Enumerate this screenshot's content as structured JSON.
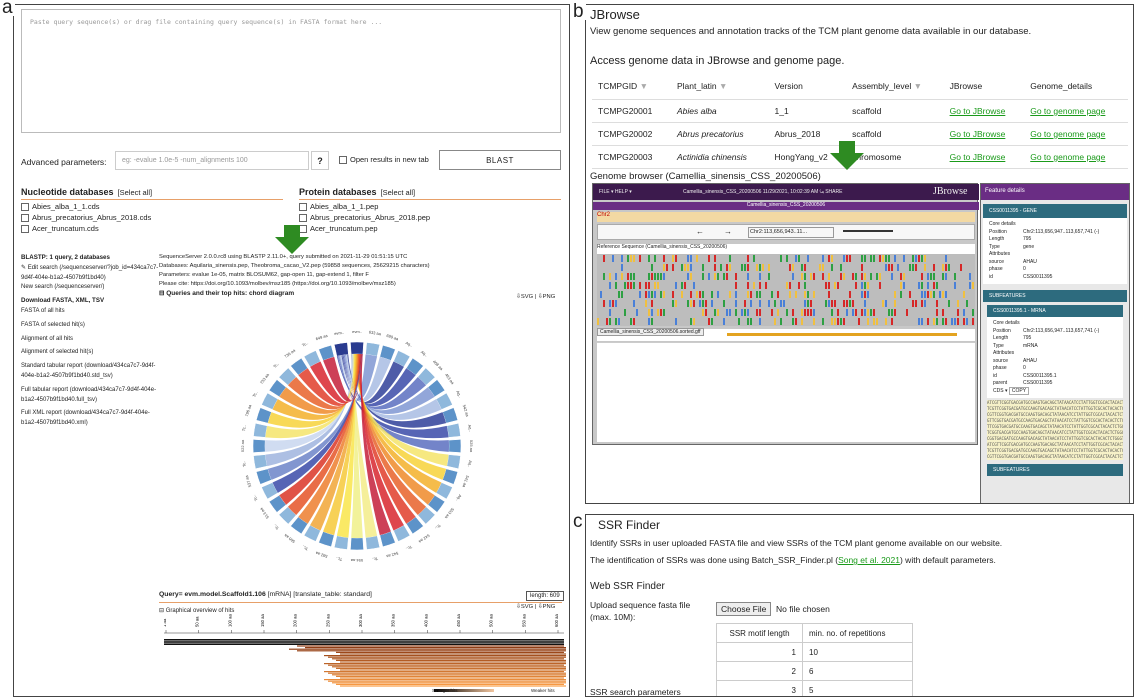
{
  "labels": {
    "a": "a",
    "b": "b",
    "c": "c"
  },
  "panel_a": {
    "query_placeholder": "Paste query sequence(s) or drag file containing query sequence(s) in FASTA format here ...",
    "advanced_label": "Advanced parameters:",
    "advanced_placeholder": "eg: -evalue 1.0e-5 -num_alignments 100",
    "help_btn": "?",
    "open_new_tab": "Open results in new tab",
    "blast_btn": "BLAST",
    "nucleotide_title": "Nucleotide databases",
    "protein_title": "Protein databases",
    "select_all": "[Select all]",
    "nucleotide_dbs": [
      "Abies_alba_1_1.cds",
      "Abrus_precatorius_Abrus_2018.cds",
      "Acer_truncatum.cds"
    ],
    "protein_dbs": [
      "Abies_alba_1_1.pep",
      "Abrus_precatorius_Abrus_2018.pep",
      "Acer_truncatum.pep"
    ],
    "side": {
      "header": "BLASTP: 1 query, 2 databases",
      "edit": "✎ Edit search (/sequenceserver/?job_id=434ca7c7-9d4f-404e-b1a2-4507b9f1bd40)",
      "new_search": "New search (/sequenceserver/)",
      "download_header": "Download FASTA, XML, TSV",
      "links": [
        "FASTA of all hits",
        "FASTA of selected hit(s)",
        "Alignment of all hits",
        "Alignment of selected hit(s)",
        "Standard tabular report (download/434ca7c7-9d4f-404e-b1a2-4507b9f1bd40.std_tsv)",
        "Full tabular report (download/434ca7c7-9d4f-404e-b1a2-4507b9f1bd40.full_tsv)",
        "Full XML report (download/434ca7c7-9d4f-404e-b1a2-4507b9f1bd40.xml)"
      ]
    },
    "meta": {
      "line1": "SequenceServer 2.0.0.rc8 using BLASTP 2.11.0+, query submitted on 2021-11-29 01:51:15 UTC",
      "line2": "Databases: Aquilaria_sinensis.pep, Theobroma_cacao_V2.pep (59858 sequences, 25629215 characters)",
      "line3": "Parameters: evalue 1e-05, matrix BLOSUM62, gap-open 11, gap-extend 1, filter F",
      "line4": "Please cite: https://doi.org/10.1093/molbev/msz185 (https://doi.org/10.1093/molbev/msz185)",
      "chord_title": "⊟ Queries and their top hits: chord diagram"
    },
    "svg_png": "⇩SVG | ⇩PNG",
    "chord_labels": [
      "evm..",
      "evm..",
      "633 aa",
      "699 aa",
      "Aq..",
      "Aq..",
      "468 aa",
      "493 aa",
      "Aq..",
      "542 aa",
      "Aq..",
      "525 aa",
      "Aq..",
      "541 aa",
      "Aq..",
      "553 aa",
      "Tc..",
      "542 aa",
      "Tc..",
      "542 aa",
      "Tc..",
      "594 aa",
      "Tc..",
      "582 aa",
      "Tc..",
      "560 aa",
      "Tc..",
      "513 aa",
      "Tc..",
      "537 aa",
      "Tc..",
      "522 aa",
      "Tc..",
      "796 aa",
      "Tc..",
      "733 aa",
      "Tc..",
      "736 aa",
      "Tc..",
      "649 aa"
    ],
    "query_title": "Query= evm.model.Scaffold1.106",
    "query_meta": "[mRNA] [translate_table: standard]",
    "length": "length: 609",
    "graph_title": "⊟ Graphical overview of hits",
    "ruler_ticks": [
      "1 aa",
      "50 aa",
      "100 aa",
      "150 aa",
      "200 aa",
      "250 aa",
      "300 aa",
      "350 aa",
      "400 aa",
      "450 aa",
      "500 aa",
      "550 aa",
      "600 aa"
    ],
    "stronger": "Stronger hits",
    "weaker": "Weaker hits"
  },
  "panel_b": {
    "title": "JBrowse",
    "desc": "View genome sequences and annotation tracks of the TCM plant genome data available in our database.",
    "access": "Access genome data in JBrowse and genome page.",
    "columns": [
      "TCMPGID",
      "Plant_latin",
      "Version",
      "Assembly_level",
      "JBrowse",
      "Genome_details"
    ],
    "rows": [
      {
        "id": "TCMPG20001",
        "latin": "Abies alba",
        "version": "1_1",
        "level": "scaffold",
        "jb": "Go to JBrowse",
        "gd": "Go to genome page"
      },
      {
        "id": "TCMPG20002",
        "latin": "Abrus precatorius",
        "version": "Abrus_2018",
        "level": "scaffold",
        "jb": "Go to JBrowse",
        "gd": "Go to genome page"
      },
      {
        "id": "TCMPG20003",
        "latin": "Actinidia chinensis",
        "version": "HongYang_v2",
        "level": "chromosome",
        "jb": "Go to JBrowse",
        "gd": "Go to genome page"
      }
    ],
    "browser_label": "Genome browser (Camellia_sinensis_CSS_20200506)",
    "jb_menu": "FILE ▾   HELP ▾",
    "jb_center": "Camellia_sinensis_CSS_20200506 11/29/2021, 10:02:39 AM  ⤿ SHARE",
    "jb_logo": "JBrowse",
    "jb_track_title": "Camellia_sinensis_CSS_20200506",
    "jb_chr": "Chr2",
    "jb_locus": "Chr2:113,656,943..11...",
    "jb_ref_track": "Reference Sequence (Camellia_sinensis_CSS_20200506)",
    "jb_gff_track": "Camellia_sinensis_CSS_20200506.sorted.gff",
    "feature": {
      "header": "Feature details",
      "gene_id": "CSS0011395 - GENE",
      "core": "Core details",
      "position": "Chr2:113,656,947..113,657,741 (-)",
      "length": "795",
      "type_gene": "gene",
      "attributes": "Attributes",
      "source": "AHAU",
      "phase": "0",
      "id": "CSS0011395",
      "subfeatures": "SUBFEATURES",
      "mrna_id": "CSS0011395.1 - MRNA",
      "type_mrna": "mRNA",
      "mrna_full_id": "CSS0011395.1",
      "parent": "CSS0011395",
      "cds_btn": "CDS ▾",
      "copy_btn": "COPY",
      "keys": [
        "Position",
        "Length",
        "Type",
        "source",
        "phase",
        "id",
        "parent"
      ]
    }
  },
  "panel_c": {
    "title": "SSR Finder",
    "desc1": "Identify SSRs in user uploaded FASTA file and view SSRs of the TCM plant genome available on our website.",
    "desc2a": "The identification of SSRs was done using Batch_SSR_Finder.pl (",
    "desc2link": "Song et al. 2021",
    "desc2b": ") with default parameters.",
    "web_title": "Web SSR Finder",
    "upload_label": "Upload sequence fasta file (max. 10M):",
    "choose_btn": "Choose File",
    "no_file": "No file chosen",
    "col1": "SSR motif length",
    "col2": "min. no. of repetitions",
    "rows": [
      {
        "len": "1",
        "rep": "10"
      },
      {
        "len": "2",
        "rep": "6"
      },
      {
        "len": "3",
        "rep": "5"
      }
    ],
    "params_label": "SSR search parameters"
  },
  "colors": {
    "green_arrow": "#2e8b22",
    "orange_line": "#e7a069",
    "link_green": "#1a9a1a",
    "jb_purple": "#3c1a4d"
  }
}
